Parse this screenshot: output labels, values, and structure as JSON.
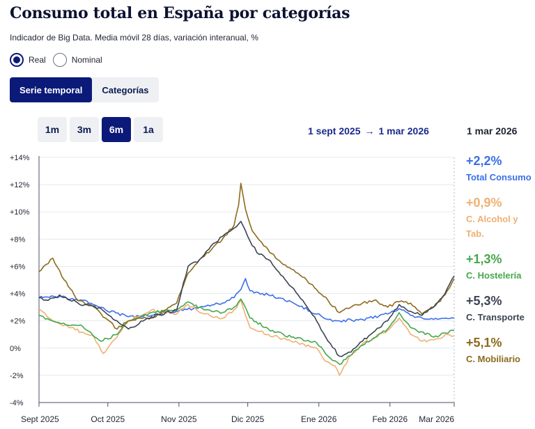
{
  "page": {
    "title": "Consumo total en España por categorías",
    "subtitle": "Indicador de Big Data. Media móvil 28 días, variación interanual, %"
  },
  "controls": {
    "radio": [
      {
        "label": "Real",
        "selected": true
      },
      {
        "label": "Nominal",
        "selected": false
      }
    ],
    "view_tabs": [
      {
        "label": "Serie temporal",
        "active": true
      },
      {
        "label": "Categorías",
        "active": false
      }
    ],
    "ranges": [
      {
        "label": "1m",
        "active": false
      },
      {
        "label": "3m",
        "active": false
      },
      {
        "label": "6m",
        "active": true
      },
      {
        "label": "1a",
        "active": false
      }
    ],
    "date_from": "1 sept 2025",
    "date_arrow": "→",
    "date_to": "1 mar 2026"
  },
  "legend_panel": {
    "date": "1 mar 2026",
    "items": [
      {
        "value": "+2,2%",
        "name": "Total Consumo",
        "color": "#3a6fe8"
      },
      {
        "value": "+0,9%",
        "name": "C. Alcohol y Tab.",
        "color": "#f0b072"
      },
      {
        "value": "+1,3%",
        "name": "C. Hostelería",
        "color": "#45a84c"
      },
      {
        "value": "+5,3%",
        "name": "C. Transporte",
        "color": "#3d4454"
      },
      {
        "value": "+5,1%",
        "name": "C. Mobiliario",
        "color": "#8c6a1c"
      }
    ]
  },
  "chart_data": {
    "type": "line",
    "x_start": "2025-09-01",
    "x_end": "2026-03-01",
    "ylim": [
      -4,
      14
    ],
    "y_ticks": [
      {
        "value": 14,
        "label": "+14%"
      },
      {
        "value": 12,
        "label": "+12%"
      },
      {
        "value": 10,
        "label": "+10%"
      },
      {
        "value": 8,
        "label": "+8%"
      },
      {
        "value": 6,
        "label": "+6%"
      },
      {
        "value": 4,
        "label": "+4%"
      },
      {
        "value": 2,
        "label": "+2%"
      },
      {
        "value": 0,
        "label": "0%"
      },
      {
        "value": -2,
        "label": "-2%"
      },
      {
        "value": -4,
        "label": "-4%"
      }
    ],
    "x_ticks": [
      {
        "date": "2025-09-01",
        "label": "Sept 2025"
      },
      {
        "date": "2025-10-01",
        "label": "Oct 2025"
      },
      {
        "date": "2025-11-01",
        "label": "Nov 2025"
      },
      {
        "date": "2025-12-01",
        "label": "Dic 2025"
      },
      {
        "date": "2026-01-01",
        "label": "Ene 2026"
      },
      {
        "date": "2026-02-01",
        "label": "Feb 2026"
      },
      {
        "date": "2026-03-01",
        "label": "Mar 2026"
      }
    ],
    "grid": true,
    "legend": "right",
    "series": [
      {
        "name": "Total Consumo",
        "color": "#3a6fe8",
        "points": [
          [
            "2025-09-01",
            3.7
          ],
          [
            "2025-09-10",
            3.8
          ],
          [
            "2025-09-20",
            3.5
          ],
          [
            "2025-09-30",
            2.8
          ],
          [
            "2025-10-10",
            2.3
          ],
          [
            "2025-10-20",
            2.4
          ],
          [
            "2025-10-31",
            2.7
          ],
          [
            "2025-11-10",
            3.0
          ],
          [
            "2025-11-20",
            3.3
          ],
          [
            "2025-11-25",
            3.7
          ],
          [
            "2025-11-28",
            4.3
          ],
          [
            "2025-11-30",
            5.1
          ],
          [
            "2025-12-02",
            4.2
          ],
          [
            "2025-12-10",
            3.9
          ],
          [
            "2025-12-20",
            3.4
          ],
          [
            "2025-12-31",
            2.5
          ],
          [
            "2026-01-05",
            2.1
          ],
          [
            "2026-01-10",
            2.0
          ],
          [
            "2026-01-20",
            2.1
          ],
          [
            "2026-01-31",
            2.5
          ],
          [
            "2026-02-05",
            2.9
          ],
          [
            "2026-02-10",
            2.4
          ],
          [
            "2026-02-20",
            2.1
          ],
          [
            "2026-03-01",
            2.2
          ]
        ]
      },
      {
        "name": "C. Alcohol y Tab.",
        "color": "#f0b072",
        "points": [
          [
            "2025-09-01",
            2.9
          ],
          [
            "2025-09-07",
            2.0
          ],
          [
            "2025-09-15",
            1.5
          ],
          [
            "2025-09-25",
            0.8
          ],
          [
            "2025-09-29",
            -0.4
          ],
          [
            "2025-10-05",
            0.8
          ],
          [
            "2025-10-10",
            2.0
          ],
          [
            "2025-10-20",
            2.8
          ],
          [
            "2025-10-31",
            2.5
          ],
          [
            "2025-11-05",
            3.2
          ],
          [
            "2025-11-12",
            2.5
          ],
          [
            "2025-11-20",
            2.2
          ],
          [
            "2025-11-25",
            2.8
          ],
          [
            "2025-11-28",
            3.5
          ],
          [
            "2025-12-02",
            1.5
          ],
          [
            "2025-12-10",
            1.0
          ],
          [
            "2025-12-20",
            0.5
          ],
          [
            "2025-12-31",
            0.0
          ],
          [
            "2026-01-03",
            -0.8
          ],
          [
            "2026-01-08",
            -1.3
          ],
          [
            "2026-01-10",
            -2.0
          ],
          [
            "2026-01-15",
            -0.5
          ],
          [
            "2026-01-20",
            0.3
          ],
          [
            "2026-01-31",
            1.3
          ],
          [
            "2026-02-05",
            2.2
          ],
          [
            "2026-02-10",
            1.0
          ],
          [
            "2026-02-15",
            0.5
          ],
          [
            "2026-02-20",
            0.6
          ],
          [
            "2026-02-26",
            1.0
          ],
          [
            "2026-03-01",
            0.9
          ]
        ]
      },
      {
        "name": "C. Hostelería",
        "color": "#45a84c",
        "points": [
          [
            "2025-09-01",
            2.4
          ],
          [
            "2025-09-10",
            1.8
          ],
          [
            "2025-09-20",
            1.6
          ],
          [
            "2025-09-28",
            0.5
          ],
          [
            "2025-10-05",
            1.0
          ],
          [
            "2025-10-10",
            2.0
          ],
          [
            "2025-10-20",
            2.6
          ],
          [
            "2025-10-31",
            2.8
          ],
          [
            "2025-11-05",
            3.4
          ],
          [
            "2025-11-12",
            2.8
          ],
          [
            "2025-11-20",
            2.6
          ],
          [
            "2025-11-25",
            3.0
          ],
          [
            "2025-11-28",
            3.6
          ],
          [
            "2025-12-02",
            2.2
          ],
          [
            "2025-12-10",
            1.4
          ],
          [
            "2025-12-20",
            0.8
          ],
          [
            "2025-12-31",
            0.4
          ],
          [
            "2026-01-05",
            -0.6
          ],
          [
            "2026-01-10",
            -1.2
          ],
          [
            "2026-01-20",
            0.2
          ],
          [
            "2026-01-31",
            1.4
          ],
          [
            "2026-02-05",
            2.6
          ],
          [
            "2026-02-10",
            1.5
          ],
          [
            "2026-02-20",
            0.8
          ],
          [
            "2026-03-01",
            1.3
          ]
        ]
      },
      {
        "name": "C. Transporte",
        "color": "#3d4454",
        "points": [
          [
            "2025-09-01",
            3.7
          ],
          [
            "2025-09-05",
            3.5
          ],
          [
            "2025-09-10",
            3.9
          ],
          [
            "2025-09-18",
            3.3
          ],
          [
            "2025-09-28",
            2.9
          ],
          [
            "2025-10-05",
            2.0
          ],
          [
            "2025-10-10",
            1.4
          ],
          [
            "2025-10-20",
            2.3
          ],
          [
            "2025-10-31",
            2.8
          ],
          [
            "2025-11-05",
            6.0
          ],
          [
            "2025-11-10",
            6.5
          ],
          [
            "2025-11-15",
            7.5
          ],
          [
            "2025-11-20",
            8.2
          ],
          [
            "2025-11-25",
            8.8
          ],
          [
            "2025-11-28",
            9.3
          ],
          [
            "2025-12-01",
            8.2
          ],
          [
            "2025-12-05",
            7.0
          ],
          [
            "2025-12-10",
            6.5
          ],
          [
            "2025-12-20",
            4.5
          ],
          [
            "2025-12-25",
            3.5
          ],
          [
            "2025-12-31",
            2.0
          ],
          [
            "2026-01-05",
            0.5
          ],
          [
            "2026-01-10",
            -0.6
          ],
          [
            "2026-01-15",
            -0.3
          ],
          [
            "2026-01-20",
            0.5
          ],
          [
            "2026-01-31",
            2.0
          ],
          [
            "2026-02-05",
            3.2
          ],
          [
            "2026-02-10",
            2.7
          ],
          [
            "2026-02-15",
            2.4
          ],
          [
            "2026-02-20",
            3.0
          ],
          [
            "2026-02-25",
            4.0
          ],
          [
            "2026-03-01",
            5.3
          ]
        ]
      },
      {
        "name": "C. Mobiliario",
        "color": "#8c6a1c",
        "points": [
          [
            "2025-09-01",
            5.6
          ],
          [
            "2025-09-05",
            6.2
          ],
          [
            "2025-09-07",
            6.6
          ],
          [
            "2025-09-12",
            5.0
          ],
          [
            "2025-09-18",
            3.5
          ],
          [
            "2025-09-25",
            3.0
          ],
          [
            "2025-09-30",
            2.2
          ],
          [
            "2025-10-05",
            1.4
          ],
          [
            "2025-10-10",
            2.0
          ],
          [
            "2025-10-15",
            2.2
          ],
          [
            "2025-10-20",
            2.2
          ],
          [
            "2025-10-31",
            3.3
          ],
          [
            "2025-11-05",
            5.5
          ],
          [
            "2025-11-10",
            6.5
          ],
          [
            "2025-11-15",
            7.2
          ],
          [
            "2025-11-20",
            8.0
          ],
          [
            "2025-11-25",
            9.0
          ],
          [
            "2025-11-27",
            10.5
          ],
          [
            "2025-11-28",
            12.1
          ],
          [
            "2025-11-30",
            10.2
          ],
          [
            "2025-12-03",
            8.6
          ],
          [
            "2025-12-08",
            7.5
          ],
          [
            "2025-12-14",
            6.5
          ],
          [
            "2025-12-20",
            5.8
          ],
          [
            "2025-12-25",
            5.2
          ],
          [
            "2025-12-31",
            4.3
          ],
          [
            "2026-01-05",
            3.5
          ],
          [
            "2026-01-10",
            2.6
          ],
          [
            "2026-01-15",
            3.0
          ],
          [
            "2026-01-20",
            3.3
          ],
          [
            "2026-01-25",
            3.5
          ],
          [
            "2026-01-31",
            3.0
          ],
          [
            "2026-02-05",
            3.4
          ],
          [
            "2026-02-10",
            3.3
          ],
          [
            "2026-02-15",
            2.5
          ],
          [
            "2026-02-20",
            3.0
          ],
          [
            "2026-02-25",
            3.9
          ],
          [
            "2026-03-01",
            5.1
          ]
        ]
      }
    ]
  }
}
